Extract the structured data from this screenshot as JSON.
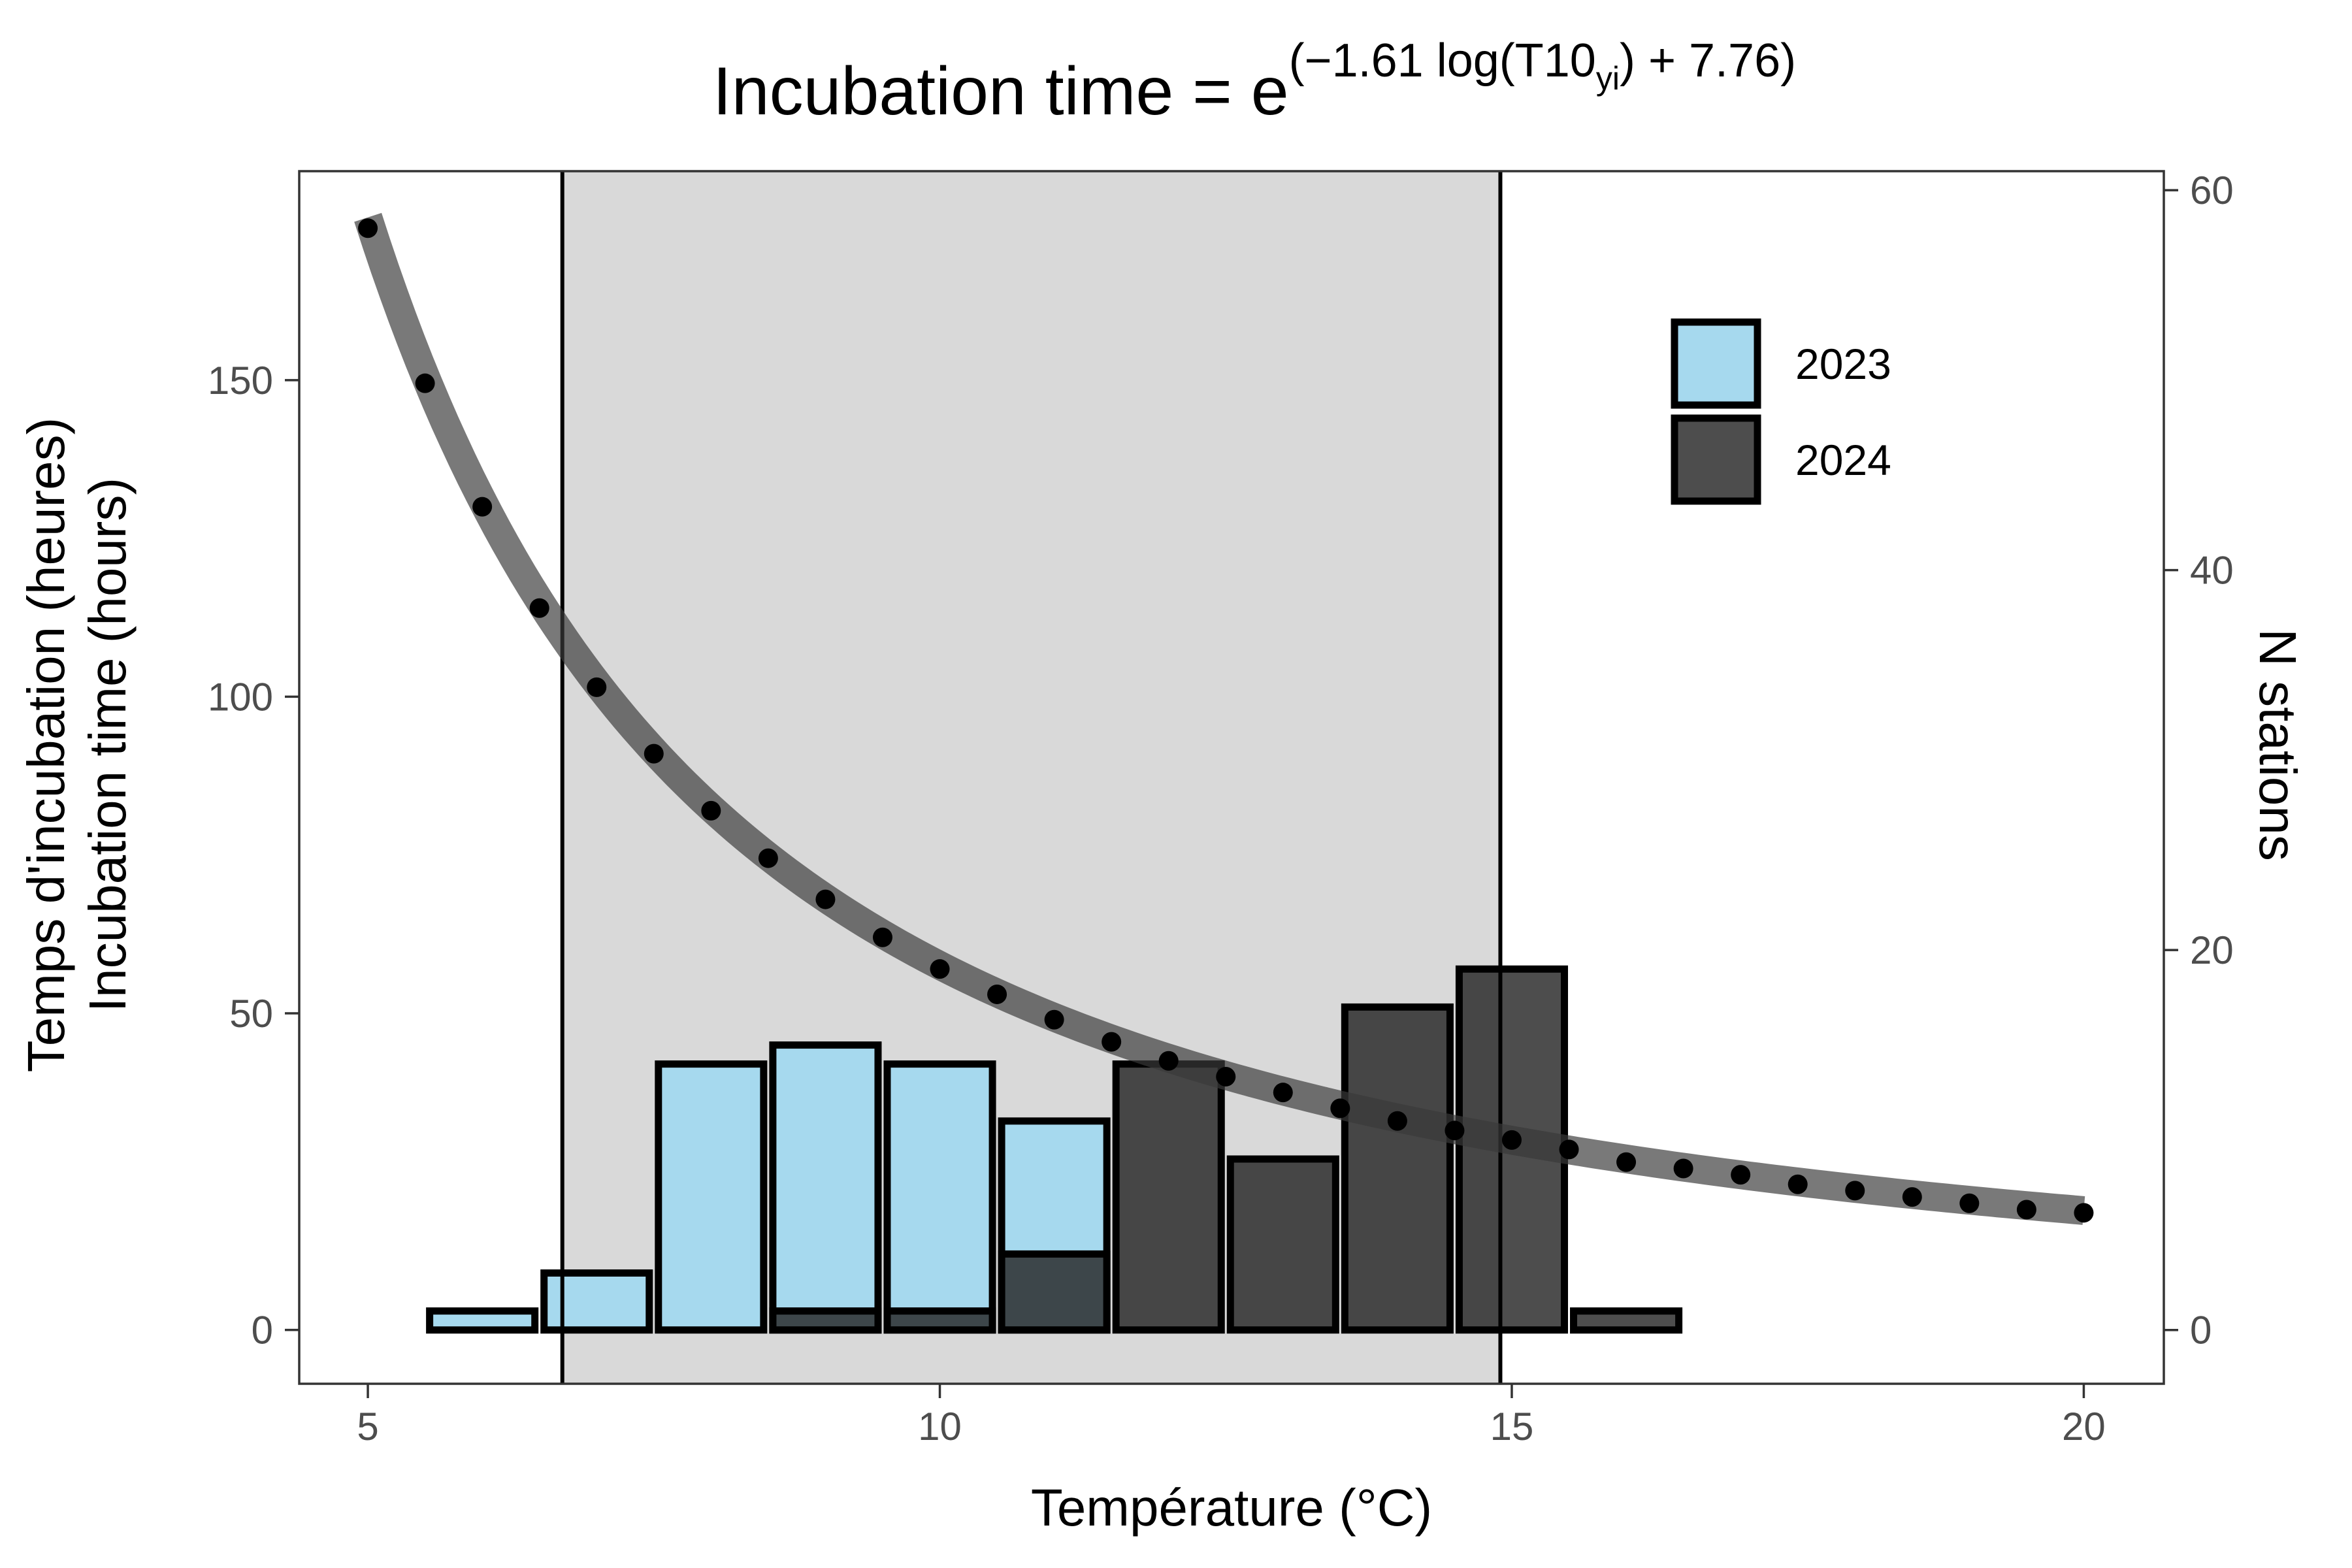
{
  "chart_data": {
    "type": "bar",
    "title": {
      "base": "Incubation time = e",
      "exp_open": "(−1.61 log(T10",
      "exp_sub": "yi",
      "exp_close": ") + 7.76)"
    },
    "xlabel": "Température (°C)",
    "ylabel_left": [
      "Temps d'incubation (heures)",
      "Incubation time (hours)"
    ],
    "ylabel_right": "N stations",
    "xlim": [
      4.4,
      20.7
    ],
    "ylim_left": [
      -8.5,
      183
    ],
    "ylim_right": [
      -2.83,
      61
    ],
    "x_ticks": [
      5,
      10,
      15,
      20
    ],
    "y_left_ticks": [
      0,
      50,
      100,
      150
    ],
    "y_right_ticks": [
      0,
      20,
      40,
      60
    ],
    "grid": false,
    "legend_position": "top-right",
    "shaded_band": {
      "xmin": 6.7,
      "xmax": 14.9
    },
    "vlines": [
      6.7,
      14.9
    ],
    "curve": {
      "a": -1.61,
      "b": 7.76
    },
    "points": {
      "x": [
        5,
        5.5,
        6,
        6.5,
        7,
        7.5,
        8,
        8.5,
        9,
        9.5,
        10,
        10.5,
        11,
        11.5,
        12,
        12.5,
        13,
        13.5,
        14,
        14.5,
        15,
        15.5,
        16,
        16.5,
        17,
        17.5,
        18,
        18.5,
        19,
        19.5,
        20
      ],
      "y": [
        174,
        149.5,
        130,
        114,
        101.5,
        91,
        82,
        74.5,
        68,
        62,
        57,
        53,
        49,
        45.5,
        42.5,
        40,
        37.5,
        35,
        33,
        31.5,
        30,
        28.5,
        26.5,
        25.5,
        24.5,
        23,
        22,
        21,
        20,
        19,
        18.5
      ]
    },
    "bin_width": 0.92,
    "series": [
      {
        "name": "2023",
        "color": "#a6d9ee",
        "x": [
          6,
          7,
          8,
          9,
          10,
          11,
          12,
          13,
          14,
          15,
          16
        ],
        "values": [
          1,
          3,
          14,
          15,
          14,
          11,
          0,
          0,
          0,
          0,
          0
        ]
      },
      {
        "name": "2024",
        "color": "#262626",
        "x": [
          6,
          7,
          8,
          9,
          10,
          11,
          12,
          13,
          14,
          15,
          16
        ],
        "values": [
          0,
          0,
          0,
          1,
          1,
          4,
          14,
          9,
          17,
          19,
          1
        ]
      }
    ]
  }
}
